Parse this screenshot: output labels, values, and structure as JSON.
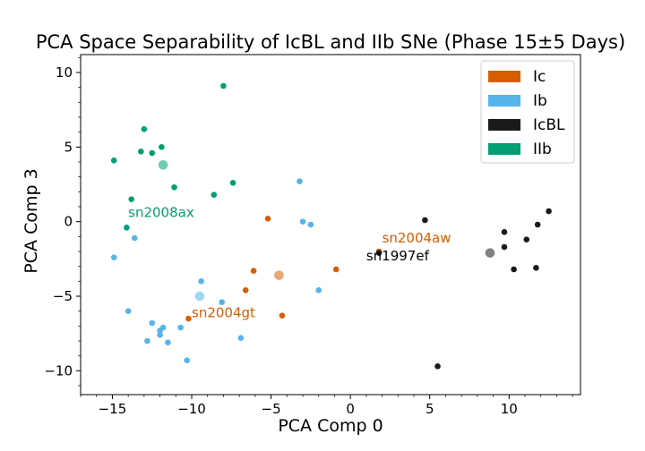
{
  "chart_data": {
    "type": "scatter",
    "title": "PCA Space Separability of IcBL and IIb SNe (Phase 15±5 Days)",
    "xlabel": "PCA Comp 0",
    "ylabel": "PCA Comp 3",
    "xlim": [
      -17,
      14.5
    ],
    "ylim": [
      -11.6,
      11.2
    ],
    "xticks": [
      -15,
      -10,
      -5,
      0,
      5,
      10
    ],
    "yticks": [
      -10,
      -5,
      0,
      5,
      10
    ],
    "xtick_labels": [
      "−15",
      "−10",
      "−5",
      "0",
      "5",
      "10"
    ],
    "ytick_labels": [
      "−10",
      "−5",
      "0",
      "5",
      "10"
    ],
    "grid": false,
    "legend_position": "top-right",
    "series": [
      {
        "name": "Ic",
        "color": "#d55e00",
        "points": [
          [
            -5.2,
            0.2
          ],
          [
            -6.1,
            -3.3
          ],
          [
            -6.6,
            -4.6
          ],
          [
            -4.3,
            -6.3
          ],
          [
            -10.2,
            -6.5
          ],
          [
            -0.9,
            -3.2
          ],
          [
            1.8,
            -2.0
          ]
        ],
        "mean": [
          -4.5,
          -3.6
        ]
      },
      {
        "name": "Ib",
        "color": "#56b4e9",
        "points": [
          [
            -3.2,
            2.7
          ],
          [
            -3.0,
            0.0
          ],
          [
            -2.5,
            -0.2
          ],
          [
            -2.0,
            -4.6
          ],
          [
            -13.6,
            -1.1
          ],
          [
            -14.9,
            -2.4
          ],
          [
            -9.4,
            -4.0
          ],
          [
            -8.1,
            -5.4
          ],
          [
            -14.0,
            -6.0
          ],
          [
            -12.5,
            -6.8
          ],
          [
            -11.8,
            -7.1
          ],
          [
            -12.0,
            -7.3
          ],
          [
            -12.0,
            -7.6
          ],
          [
            -10.7,
            -7.1
          ],
          [
            -12.8,
            -8.0
          ],
          [
            -11.5,
            -8.1
          ],
          [
            -6.9,
            -7.8
          ],
          [
            -10.3,
            -9.3
          ]
        ],
        "mean": [
          -9.5,
          -5.0
        ]
      },
      {
        "name": "IcBL",
        "color": "#1a1a1a",
        "points": [
          [
            4.7,
            0.1
          ],
          [
            12.5,
            0.7
          ],
          [
            11.8,
            -0.2
          ],
          [
            9.7,
            -0.7
          ],
          [
            9.7,
            -1.7
          ],
          [
            11.1,
            -1.2
          ],
          [
            10.3,
            -3.2
          ],
          [
            11.7,
            -3.1
          ],
          [
            1.8,
            -2.1
          ],
          [
            5.5,
            -9.7
          ]
        ],
        "mean": [
          8.8,
          -2.1
        ]
      },
      {
        "name": "IIb",
        "color": "#009e73",
        "points": [
          [
            -8.0,
            9.1
          ],
          [
            -13.0,
            6.2
          ],
          [
            -11.9,
            5.0
          ],
          [
            -13.2,
            4.7
          ],
          [
            -12.5,
            4.6
          ],
          [
            -14.9,
            4.1
          ],
          [
            -11.1,
            2.3
          ],
          [
            -7.4,
            2.6
          ],
          [
            -8.6,
            1.8
          ],
          [
            -13.8,
            1.5
          ],
          [
            -14.1,
            -0.4
          ]
        ],
        "mean": [
          -11.8,
          3.8
        ]
      }
    ],
    "annotations": [
      {
        "text": "sn2008ax",
        "x": -14.0,
        "y": 0.3,
        "color": "#009e73"
      },
      {
        "text": "sn2004aw",
        "x": 2.0,
        "y": -1.4,
        "color": "#d55e00"
      },
      {
        "text": "sn1997ef",
        "x": 1.0,
        "y": -2.6,
        "color": "#000000"
      },
      {
        "text": "sn2004gt",
        "x": -10.0,
        "y": -6.4,
        "color": "#d55e00"
      }
    ]
  }
}
